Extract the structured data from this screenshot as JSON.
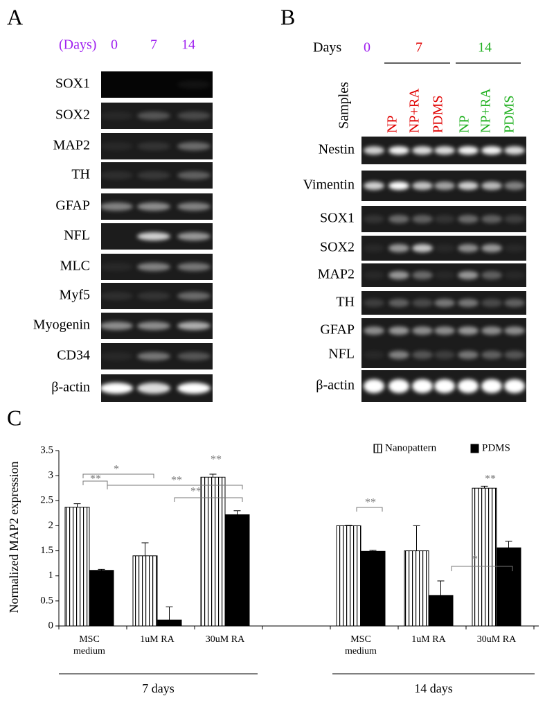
{
  "panel_a": {
    "label": "A",
    "days_label": "(Days)",
    "days": [
      "0",
      "7",
      "14"
    ],
    "genes": [
      "SOX1",
      "SOX2",
      "MAP2",
      "TH",
      "GFAP",
      "NFL",
      "MLC",
      "Myf5",
      "Myogenin",
      "CD34",
      "β-actin"
    ]
  },
  "panel_b": {
    "label": "B",
    "days_label": "Days",
    "days": [
      "0",
      "7",
      "14"
    ],
    "samples_label": "Samples",
    "samples": [
      "NP",
      "NP+RA",
      "PDMS",
      "NP",
      "NP+RA",
      "PDMS"
    ],
    "genes": [
      "Nestin",
      "Vimentin",
      "SOX1",
      "SOX2",
      "MAP2",
      "TH",
      "GFAP",
      "NFL",
      "β-actin"
    ]
  },
  "chart_data": {
    "type": "bar",
    "panel_label": "C",
    "y_label": "Normalized MAP2 expression",
    "categories": [
      "MSC medium",
      "1uM RA",
      "30uM RA",
      "MSC medium",
      "1uM RA",
      "30uM RA"
    ],
    "groups": [
      "7 days",
      "14 days"
    ],
    "ylim": [
      0,
      3.5
    ],
    "yticks": [
      0,
      0.5,
      1,
      1.5,
      2,
      2.5,
      3,
      3.5
    ],
    "legend": "upper right",
    "series": [
      {
        "name": "Nanopattern",
        "color": "#000000",
        "hatch": "vertical",
        "values": [
          2.37,
          1.4,
          2.97,
          2.0,
          1.5,
          2.75
        ],
        "errors": [
          0.07,
          0.26,
          0.06,
          0.01,
          0.5,
          0.04
        ]
      },
      {
        "name": "PDMS",
        "color": "#000000",
        "values": [
          1.11,
          0.12,
          2.22,
          1.49,
          0.61,
          1.56
        ],
        "errors": [
          0.02,
          0.26,
          0.08,
          0.02,
          0.29,
          0.13
        ]
      }
    ],
    "annotations": [
      "**",
      "*",
      "**",
      "**",
      "**",
      "**",
      "*",
      "**"
    ]
  }
}
